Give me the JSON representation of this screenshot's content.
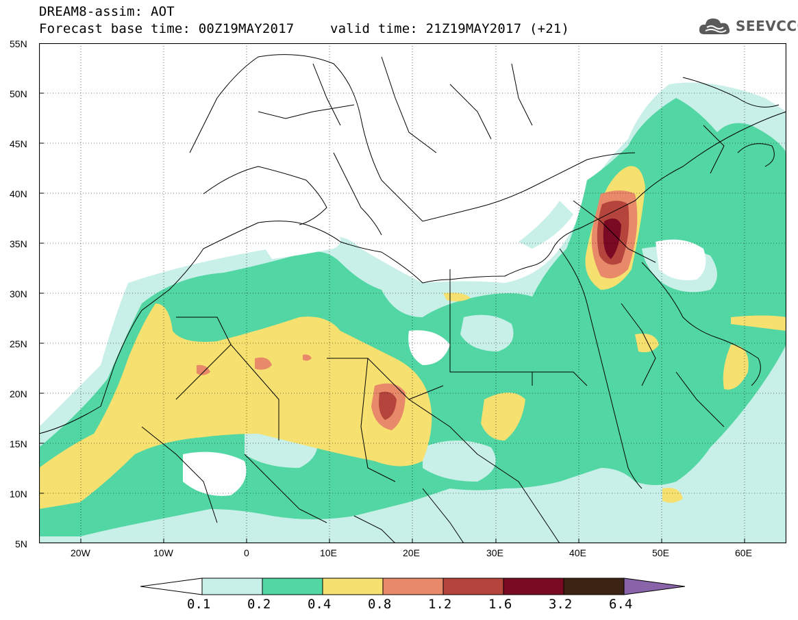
{
  "header": {
    "line1": "DREAM8-assim: AOT",
    "line2a": "Forecast base time: 00Z19MAY2017",
    "line2b": "valid time: 21Z19MAY2017 (+21)",
    "logo_text": "SEEVCCC",
    "logo_icon": "cloud-icon"
  },
  "map": {
    "region": "North Africa, Mediterranean and Middle East",
    "lon_range": [
      -25,
      65
    ],
    "lat_range": [
      5,
      55
    ],
    "lat_labels": [
      "55N",
      "50N",
      "45N",
      "40N",
      "35N",
      "30N",
      "25N",
      "20N",
      "15N",
      "10N",
      "5N"
    ],
    "lon_labels": [
      "20W",
      "10W",
      "0",
      "10E",
      "20E",
      "30E",
      "40E",
      "50E",
      "60E"
    ],
    "field": "Aerosol Optical Thickness (AOT)"
  },
  "colorbar": {
    "levels": [
      "0.1",
      "0.2",
      "0.4",
      "0.8",
      "1.2",
      "1.6",
      "3.2",
      "6.4"
    ],
    "colors": [
      "#ffffff",
      "#c8f0e8",
      "#52d6a4",
      "#f5e070",
      "#e8896a",
      "#b5443c",
      "#7a0a24",
      "#3c2414",
      "#8a64a8"
    ]
  }
}
